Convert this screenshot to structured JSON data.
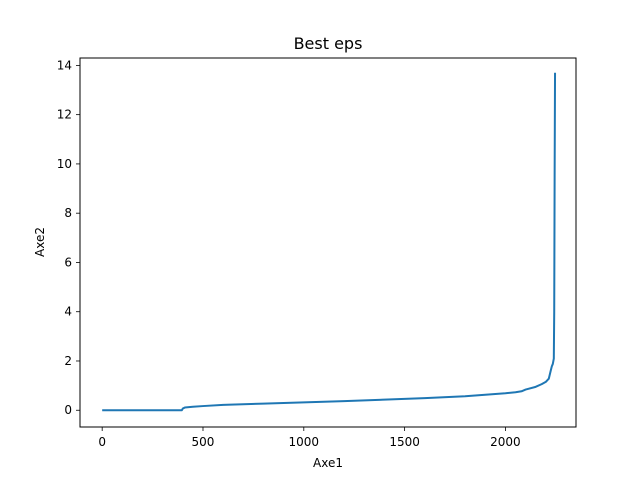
{
  "chart_data": {
    "type": "line",
    "title": "Best eps",
    "xlabel": "Axe1",
    "ylabel": "Axe2",
    "xlim": [
      -110,
      2350
    ],
    "ylim": [
      -0.68,
      14.3
    ],
    "grid": false,
    "x_ticks": [
      0,
      500,
      1000,
      1500,
      2000
    ],
    "y_ticks": [
      0,
      2,
      4,
      6,
      8,
      10,
      12,
      14
    ],
    "x_tick_labels": [
      "0",
      "500",
      "1000",
      "1500",
      "2000"
    ],
    "y_tick_labels": [
      "0",
      "2",
      "4",
      "6",
      "8",
      "10",
      "12",
      "14"
    ],
    "series": [
      {
        "color": "#1f77b4",
        "x": [
          0,
          395,
          400,
          410,
          450,
          500,
          600,
          800,
          1000,
          1200,
          1400,
          1600,
          1800,
          1900,
          2000,
          2050,
          2080,
          2100,
          2150,
          2180,
          2200,
          2215,
          2225,
          2230,
          2235,
          2240,
          2242,
          2244,
          2246
        ],
        "y": [
          0.0,
          0.0,
          0.07,
          0.11,
          0.14,
          0.17,
          0.22,
          0.27,
          0.32,
          0.37,
          0.43,
          0.49,
          0.57,
          0.63,
          0.69,
          0.73,
          0.77,
          0.84,
          0.95,
          1.06,
          1.15,
          1.28,
          1.62,
          1.78,
          1.88,
          2.1,
          4.0,
          9.5,
          13.7
        ]
      }
    ]
  }
}
